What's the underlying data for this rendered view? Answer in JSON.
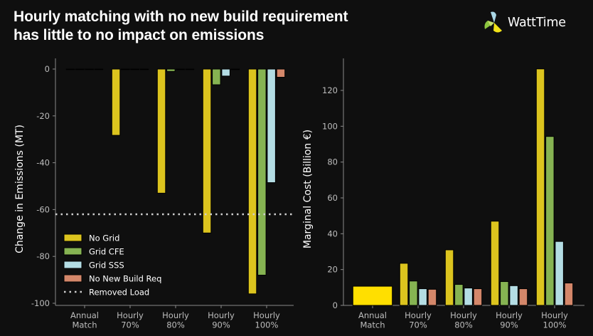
{
  "header": {
    "title_line1": "Hourly matching with no new build requirement",
    "title_line2": "has little to no impact on emissions",
    "logo_text": "WattTime",
    "logo_icon": "pinwheel-logo-icon"
  },
  "colors": {
    "background": "#0f0f0f",
    "no_grid": "#dcc41e",
    "grid_cfe": "#86b352",
    "grid_sss": "#b4dde4",
    "no_new_build": "#d4876a",
    "annual_match": "#ffdf00",
    "removed_load": "#cfcfcf",
    "axis": "#8a8a8a",
    "tick_text": "#bdbdbd"
  },
  "chart_data": [
    {
      "type": "bar",
      "title": "",
      "xlabel": "",
      "ylabel": "Change in Emissions (MT)",
      "ylim": [
        -102,
        3
      ],
      "yticks": [
        0,
        -20,
        -40,
        -60,
        -80,
        -100
      ],
      "categories": [
        "Annual\nMatch",
        "Hourly\n70%",
        "Hourly\n80%",
        "Hourly\n90%",
        "Hourly\n100%"
      ],
      "series": [
        {
          "name": "No Grid",
          "color_key": "no_grid",
          "values": [
            0,
            -28.3,
            -53,
            -70,
            -96
          ]
        },
        {
          "name": "Grid CFE",
          "color_key": "grid_cfe",
          "values": [
            0,
            0,
            -1,
            -6.7,
            -88
          ]
        },
        {
          "name": "Grid SSS",
          "color_key": "grid_sss",
          "values": [
            0,
            0,
            0,
            -3,
            -48.5
          ]
        },
        {
          "name": "No New Build Req",
          "color_key": "no_new_build",
          "values": [
            0,
            0,
            0,
            0,
            -3.5
          ]
        }
      ],
      "reference_lines": [
        {
          "name": "Removed Load",
          "value": -62,
          "style": "dotted"
        }
      ],
      "legend": {
        "placement": "lower-left",
        "entries": [
          "No Grid",
          "Grid CFE",
          "Grid SSS",
          "No New Build Req",
          "Removed Load"
        ]
      },
      "grid": false
    },
    {
      "type": "bar",
      "title": "",
      "xlabel": "",
      "ylabel": "Marginal Cost (Billion €)",
      "ylim": [
        0,
        136
      ],
      "yticks": [
        0,
        20,
        40,
        60,
        80,
        100,
        120
      ],
      "categories": [
        "Annual\nMatch",
        "Hourly\n70%",
        "Hourly\n80%",
        "Hourly\n90%",
        "Hourly\n100%"
      ],
      "annual_match_value": 10.7,
      "series": [
        {
          "name": "No Grid",
          "color_key": "no_grid",
          "values": [
            null,
            23.5,
            31,
            47,
            132
          ]
        },
        {
          "name": "Grid CFE",
          "color_key": "grid_cfe",
          "values": [
            null,
            13.6,
            11.7,
            13.3,
            94.3
          ]
        },
        {
          "name": "Grid SSS",
          "color_key": "grid_sss",
          "values": [
            null,
            9.3,
            9.7,
            11,
            35.7
          ]
        },
        {
          "name": "No New Build Req",
          "color_key": "no_new_build",
          "values": [
            null,
            9.0,
            9.3,
            9.3,
            12.5
          ]
        }
      ],
      "legend": null,
      "grid": false
    }
  ]
}
